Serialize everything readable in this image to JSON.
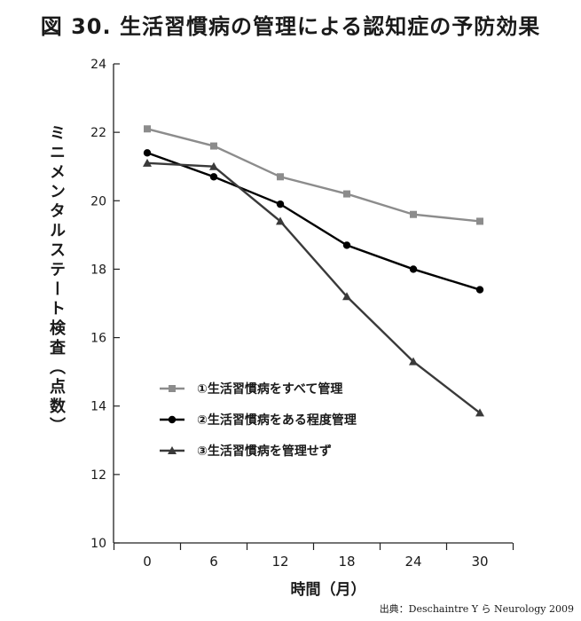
{
  "title": "図 30. 生活習慣病の管理による認知症の予防効果",
  "source": "出典：Deschaintre Y ら Neurology 2009",
  "chart_data": {
    "type": "line",
    "title": "図 30. 生活習慣病の管理による認知症の予防効果",
    "xlabel": "時間（月）",
    "ylabel": "ミニメンタルステート検査（点数）",
    "x": [
      0,
      6,
      12,
      18,
      24,
      30
    ],
    "x_tick_labels": [
      "0",
      "6",
      "12",
      "18",
      "24",
      "30"
    ],
    "y_ticks": [
      10,
      12,
      14,
      16,
      18,
      20,
      22,
      24
    ],
    "ylim": [
      10,
      24
    ],
    "grid": false,
    "legend_position": "lower-left",
    "series": [
      {
        "name": "①生活習慣病をすべて管理",
        "marker": "square",
        "color": "#8c8c8c",
        "values": [
          22.1,
          21.6,
          20.7,
          20.2,
          19.6,
          19.4
        ]
      },
      {
        "name": "②生活習慣病をある程度管理",
        "marker": "circle",
        "color": "#000000",
        "values": [
          21.4,
          20.7,
          19.9,
          18.7,
          18.0,
          17.4
        ]
      },
      {
        "name": "③生活習慣病を管理せず",
        "marker": "triangle",
        "color": "#3a3a3a",
        "values": [
          21.1,
          21.0,
          19.4,
          17.2,
          15.3,
          13.8
        ]
      }
    ]
  }
}
